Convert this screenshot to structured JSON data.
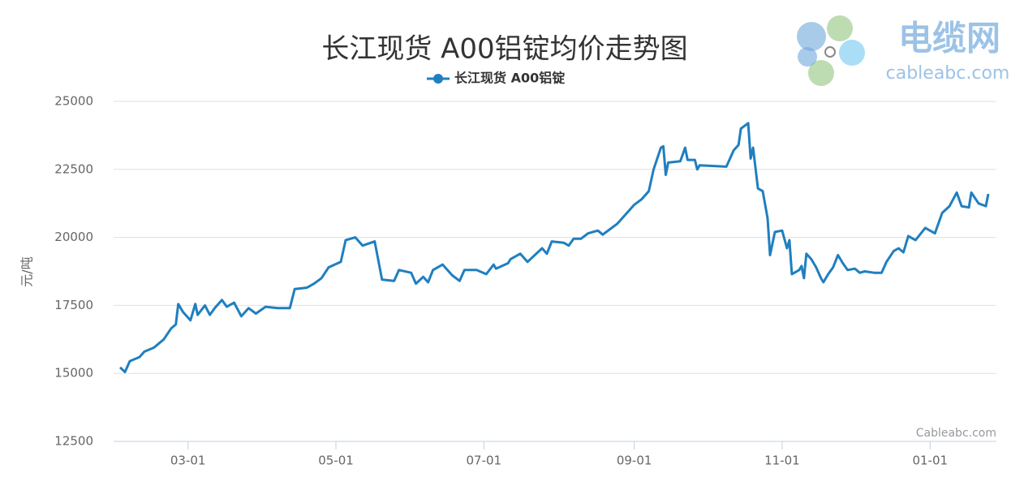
{
  "chart_data": {
    "type": "line",
    "title": "长江现货 A00铝锭均价走势图",
    "y_label": "元/吨",
    "credits": "Cableabc.com",
    "x": [
      "02-01",
      "02-03",
      "02-05",
      "02-09",
      "02-11",
      "02-15",
      "02-19",
      "02-22",
      "02-24",
      "02-25",
      "02-27",
      "03-02",
      "03-04",
      "03-05",
      "03-08",
      "03-10",
      "03-12",
      "03-15",
      "03-17",
      "03-20",
      "03-23",
      "03-26",
      "03-29",
      "04-02",
      "04-07",
      "04-12",
      "04-14",
      "04-19",
      "04-22",
      "04-25",
      "04-28",
      "05-03",
      "05-05",
      "05-09",
      "05-12",
      "05-17",
      "05-20",
      "05-25",
      "05-27",
      "06-01",
      "06-03",
      "06-06",
      "06-08",
      "06-10",
      "06-14",
      "06-18",
      "06-21",
      "06-23",
      "06-28",
      "07-02",
      "07-05",
      "07-06",
      "07-11",
      "07-12",
      "07-16",
      "07-19",
      "07-22",
      "07-25",
      "07-27",
      "07-29",
      "08-03",
      "08-05",
      "08-07",
      "08-10",
      "08-13",
      "08-17",
      "08-19",
      "08-22",
      "08-25",
      "08-28",
      "09-01",
      "09-04",
      "09-07",
      "09-09",
      "09-12",
      "09-13",
      "09-14",
      "09-15",
      "09-20",
      "09-22",
      "09-23",
      "09-26",
      "09-27",
      "09-28",
      "10-09",
      "10-12",
      "10-14",
      "10-15",
      "10-18",
      "10-19",
      "10-20",
      "10-22",
      "10-24",
      "10-26",
      "10-27",
      "10-29",
      "11-01",
      "11-03",
      "11-04",
      "11-05",
      "11-08",
      "11-09",
      "11-10",
      "11-11",
      "11-13",
      "11-15",
      "11-17",
      "11-18",
      "11-20",
      "11-22",
      "11-24",
      "11-26",
      "11-28",
      "12-01",
      "12-03",
      "12-05",
      "12-09",
      "12-12",
      "12-14",
      "12-17",
      "12-19",
      "12-21",
      "12-23",
      "12-26",
      "12-30",
      "01-03",
      "01-06",
      "01-09",
      "01-12",
      "01-14",
      "01-17",
      "01-18",
      "01-21",
      "01-24",
      "01-25"
    ],
    "series": [
      {
        "name": "长江现货 A00铝锭",
        "color": "#1f7fbf",
        "values": [
          15220,
          15050,
          15450,
          15600,
          15800,
          15950,
          16250,
          16650,
          16800,
          17550,
          17250,
          16950,
          17550,
          17150,
          17500,
          17150,
          17400,
          17700,
          17450,
          17600,
          17100,
          17400,
          17200,
          17450,
          17400,
          17400,
          18100,
          18150,
          18300,
          18500,
          18900,
          19100,
          19900,
          20000,
          19700,
          19850,
          18450,
          18400,
          18800,
          18700,
          18300,
          18550,
          18350,
          18800,
          19000,
          18600,
          18400,
          18800,
          18800,
          18650,
          19000,
          18850,
          19050,
          19200,
          19400,
          19100,
          19350,
          19600,
          19400,
          19850,
          19800,
          19700,
          19950,
          19950,
          20150,
          20250,
          20100,
          20300,
          20500,
          20800,
          21200,
          21400,
          21700,
          22500,
          23300,
          23350,
          22300,
          22750,
          22800,
          23300,
          22850,
          22850,
          22500,
          22650,
          22600,
          23200,
          23400,
          24000,
          24200,
          22900,
          23300,
          21800,
          21700,
          20700,
          19350,
          20200,
          20250,
          19600,
          19900,
          18650,
          18800,
          18950,
          18500,
          19400,
          19200,
          18900,
          18500,
          18350,
          18650,
          18900,
          19350,
          19050,
          18800,
          18850,
          18700,
          18750,
          18700,
          18700,
          19100,
          19500,
          19600,
          19450,
          20050,
          19900,
          20350,
          20150,
          20900,
          21150,
          21650,
          21150,
          21100,
          21650,
          21250,
          21150,
          21600
        ]
      }
    ],
    "xticks": [
      "03-01",
      "05-01",
      "07-01",
      "09-01",
      "11-01",
      "01-01"
    ],
    "ylim": [
      12500,
      25000
    ],
    "yticks": [
      12500,
      15000,
      17500,
      20000,
      22500,
      25000
    ],
    "grid": true
  },
  "logo": {
    "title": "电缆网",
    "url": "cableabc.com"
  }
}
